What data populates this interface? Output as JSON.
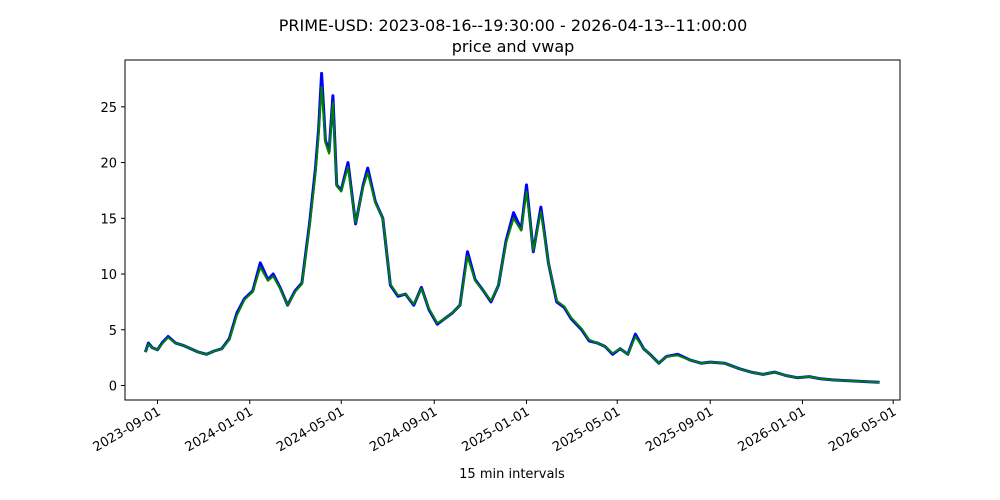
{
  "chart_data": {
    "type": "line",
    "title": "PRIME-USD: 2023-08-16--19:30:00 - 2026-04-13--11:00:00",
    "subtitle": "price and vwap",
    "xlabel": "15 min intervals",
    "ylabel": "",
    "xlim": [
      "2023-07-20",
      "2026-05-10"
    ],
    "ylim": [
      -1.3,
      29.2
    ],
    "grid": false,
    "x_ticks": [
      "2023-09-01",
      "2024-01-01",
      "2024-05-01",
      "2024-09-01",
      "2025-01-01",
      "2025-05-01",
      "2025-09-01",
      "2026-01-01",
      "2026-05-01"
    ],
    "y_ticks": [
      0,
      5,
      10,
      15,
      20,
      25
    ],
    "series": [
      {
        "color": "#0000ff",
        "x": [
          "2023-08-16",
          "2023-08-20",
          "2023-08-25",
          "2023-09-01",
          "2023-09-08",
          "2023-09-15",
          "2023-09-25",
          "2023-10-05",
          "2023-10-15",
          "2023-10-25",
          "2023-11-05",
          "2023-11-15",
          "2023-11-25",
          "2023-12-05",
          "2023-12-15",
          "2023-12-25",
          "2024-01-05",
          "2024-01-15",
          "2024-01-25",
          "2024-02-01",
          "2024-02-10",
          "2024-02-20",
          "2024-03-01",
          "2024-03-10",
          "2024-03-20",
          "2024-03-28",
          "2024-04-01",
          "2024-04-05",
          "2024-04-10",
          "2024-04-15",
          "2024-04-20",
          "2024-04-25",
          "2024-05-01",
          "2024-05-10",
          "2024-05-20",
          "2024-05-30",
          "2024-06-05",
          "2024-06-15",
          "2024-06-25",
          "2024-07-05",
          "2024-07-15",
          "2024-07-25",
          "2024-08-05",
          "2024-08-15",
          "2024-08-25",
          "2024-09-05",
          "2024-09-15",
          "2024-09-25",
          "2024-10-05",
          "2024-10-15",
          "2024-10-25",
          "2024-11-05",
          "2024-11-15",
          "2024-11-25",
          "2024-12-05",
          "2024-12-15",
          "2024-12-25",
          "2025-01-01",
          "2025-01-10",
          "2025-01-20",
          "2025-01-30",
          "2025-02-10",
          "2025-02-20",
          "2025-03-01",
          "2025-03-15",
          "2025-03-25",
          "2025-04-05",
          "2025-04-15",
          "2025-04-25",
          "2025-05-05",
          "2025-05-15",
          "2025-05-25",
          "2025-06-05",
          "2025-06-15",
          "2025-06-25",
          "2025-07-05",
          "2025-07-20",
          "2025-08-05",
          "2025-08-20",
          "2025-09-01",
          "2025-09-20",
          "2025-10-10",
          "2025-10-25",
          "2025-11-10",
          "2025-11-25",
          "2025-12-10",
          "2025-12-25",
          "2026-01-10",
          "2026-01-25",
          "2026-02-10",
          "2026-02-25",
          "2026-03-10",
          "2026-03-25",
          "2026-04-13"
        ],
        "y": [
          3.0,
          3.8,
          3.4,
          3.2,
          3.9,
          4.4,
          3.8,
          3.6,
          3.3,
          3.0,
          2.8,
          3.1,
          3.3,
          4.2,
          6.5,
          7.8,
          8.5,
          11.0,
          9.5,
          10.0,
          8.8,
          7.2,
          8.5,
          9.2,
          14.5,
          19.5,
          23.0,
          28.0,
          22.0,
          21.0,
          26.0,
          18.0,
          17.5,
          20.0,
          14.5,
          18.0,
          19.5,
          16.5,
          15.0,
          9.0,
          8.0,
          8.2,
          7.2,
          8.8,
          6.8,
          5.5,
          6.0,
          6.5,
          7.2,
          12.0,
          9.5,
          8.5,
          7.5,
          9.0,
          13.0,
          15.5,
          14.0,
          18.0,
          12.0,
          16.0,
          11.0,
          7.5,
          7.0,
          6.0,
          5.0,
          4.0,
          3.8,
          3.5,
          2.8,
          3.3,
          2.8,
          4.6,
          3.3,
          2.7,
          2.0,
          2.6,
          2.8,
          2.3,
          2.0,
          2.1,
          2.0,
          1.5,
          1.2,
          1.0,
          1.2,
          0.9,
          0.7,
          0.8,
          0.6,
          0.5,
          0.45,
          0.4,
          0.35,
          0.3
        ]
      },
      {
        "color": "#008000",
        "x": [
          "2023-08-16",
          "2023-08-20",
          "2023-08-25",
          "2023-09-01",
          "2023-09-08",
          "2023-09-15",
          "2023-09-25",
          "2023-10-05",
          "2023-10-15",
          "2023-10-25",
          "2023-11-05",
          "2023-11-15",
          "2023-11-25",
          "2023-12-05",
          "2023-12-15",
          "2023-12-25",
          "2024-01-05",
          "2024-01-15",
          "2024-01-25",
          "2024-02-01",
          "2024-02-10",
          "2024-02-20",
          "2024-03-01",
          "2024-03-10",
          "2024-03-20",
          "2024-03-28",
          "2024-04-01",
          "2024-04-05",
          "2024-04-10",
          "2024-04-15",
          "2024-04-20",
          "2024-04-25",
          "2024-05-01",
          "2024-05-10",
          "2024-05-20",
          "2024-05-30",
          "2024-06-05",
          "2024-06-15",
          "2024-06-25",
          "2024-07-05",
          "2024-07-15",
          "2024-07-25",
          "2024-08-05",
          "2024-08-15",
          "2024-08-25",
          "2024-09-05",
          "2024-09-15",
          "2024-09-25",
          "2024-10-05",
          "2024-10-15",
          "2024-10-25",
          "2024-11-05",
          "2024-11-15",
          "2024-11-25",
          "2024-12-05",
          "2024-12-15",
          "2024-12-25",
          "2025-01-01",
          "2025-01-10",
          "2025-01-20",
          "2025-01-30",
          "2025-02-10",
          "2025-02-20",
          "2025-03-01",
          "2025-03-15",
          "2025-03-25",
          "2025-04-05",
          "2025-04-15",
          "2025-04-25",
          "2025-05-05",
          "2025-05-15",
          "2025-05-25",
          "2025-06-05",
          "2025-06-15",
          "2025-06-25",
          "2025-07-05",
          "2025-07-20",
          "2025-08-05",
          "2025-08-20",
          "2025-09-01",
          "2025-09-20",
          "2025-10-10",
          "2025-10-25",
          "2025-11-10",
          "2025-11-25",
          "2025-12-10",
          "2025-12-25",
          "2026-01-10",
          "2026-01-25",
          "2026-02-10",
          "2026-02-25",
          "2026-03-10",
          "2026-03-25",
          "2026-04-13"
        ],
        "y": [
          3.0,
          3.7,
          3.4,
          3.2,
          3.8,
          4.3,
          3.8,
          3.6,
          3.3,
          3.0,
          2.8,
          3.1,
          3.3,
          4.1,
          6.3,
          7.7,
          8.4,
          10.6,
          9.4,
          9.8,
          8.7,
          7.2,
          8.4,
          9.1,
          14.2,
          19.0,
          22.5,
          26.8,
          21.8,
          20.8,
          25.4,
          17.9,
          17.4,
          19.6,
          14.6,
          17.8,
          19.1,
          16.4,
          15.0,
          9.1,
          8.1,
          8.2,
          7.3,
          8.7,
          6.9,
          5.6,
          6.0,
          6.5,
          7.2,
          11.6,
          9.4,
          8.5,
          7.6,
          9.0,
          12.8,
          15.0,
          13.9,
          17.4,
          12.1,
          15.6,
          11.0,
          7.6,
          7.1,
          6.1,
          5.1,
          4.1,
          3.8,
          3.5,
          2.9,
          3.3,
          2.8,
          4.4,
          3.3,
          2.7,
          2.0,
          2.6,
          2.7,
          2.3,
          2.0,
          2.1,
          2.0,
          1.5,
          1.2,
          1.0,
          1.2,
          0.9,
          0.7,
          0.8,
          0.6,
          0.5,
          0.45,
          0.4,
          0.35,
          0.3
        ]
      }
    ]
  }
}
